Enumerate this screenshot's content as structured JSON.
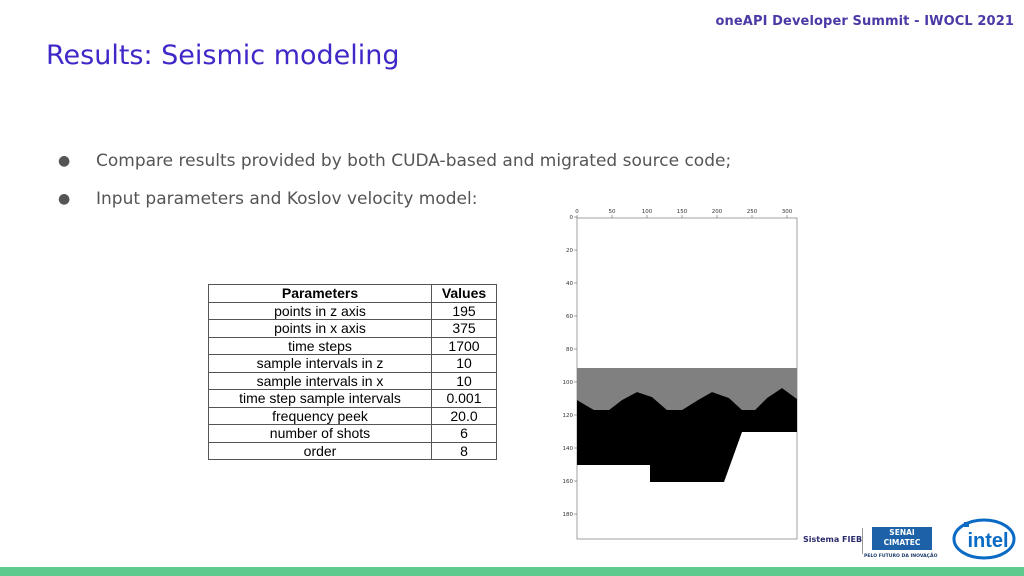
{
  "header": {
    "event": "oneAPI Developer Summit - IWOCL 2021"
  },
  "title": "Results: Seismic modeling",
  "bullets": [
    {
      "marker": "●",
      "text": "Compare results provided by both CUDA-based and migrated source code;"
    },
    {
      "marker": "●",
      "text": "Input parameters and Koslov velocity model:"
    }
  ],
  "table": {
    "headers": [
      "Parameters",
      "Values"
    ],
    "rows": [
      [
        "points in z axis",
        "195"
      ],
      [
        "points in x axis",
        "375"
      ],
      [
        "time steps",
        "1700"
      ],
      [
        "sample intervals in z",
        "10"
      ],
      [
        "sample intervals in x",
        "10"
      ],
      [
        "time step sample intervals",
        "0.001"
      ],
      [
        "frequency peek",
        "20.0"
      ],
      [
        "number of shots",
        "6"
      ],
      [
        "order",
        "8"
      ]
    ]
  },
  "velocity_model": {
    "x_ticks": [
      "0",
      "50",
      "100",
      "150",
      "200",
      "250",
      "300"
    ],
    "y_ticks": [
      "0",
      "20",
      "40",
      "60",
      "80",
      "100",
      "120",
      "140",
      "160",
      "180"
    ],
    "colors": {
      "background": "#ffffff",
      "middle_layer": "#808080",
      "lower_layer": "#000000"
    }
  },
  "footer": {
    "sistema": "Sistema FIEB",
    "senai_line1": "SENAI",
    "senai_line2": "CIMATEC",
    "senai_tagline": "PELO FUTURO DA INOVAÇÃO",
    "intel": "intel",
    "bar_color": "#5ecb8e"
  }
}
